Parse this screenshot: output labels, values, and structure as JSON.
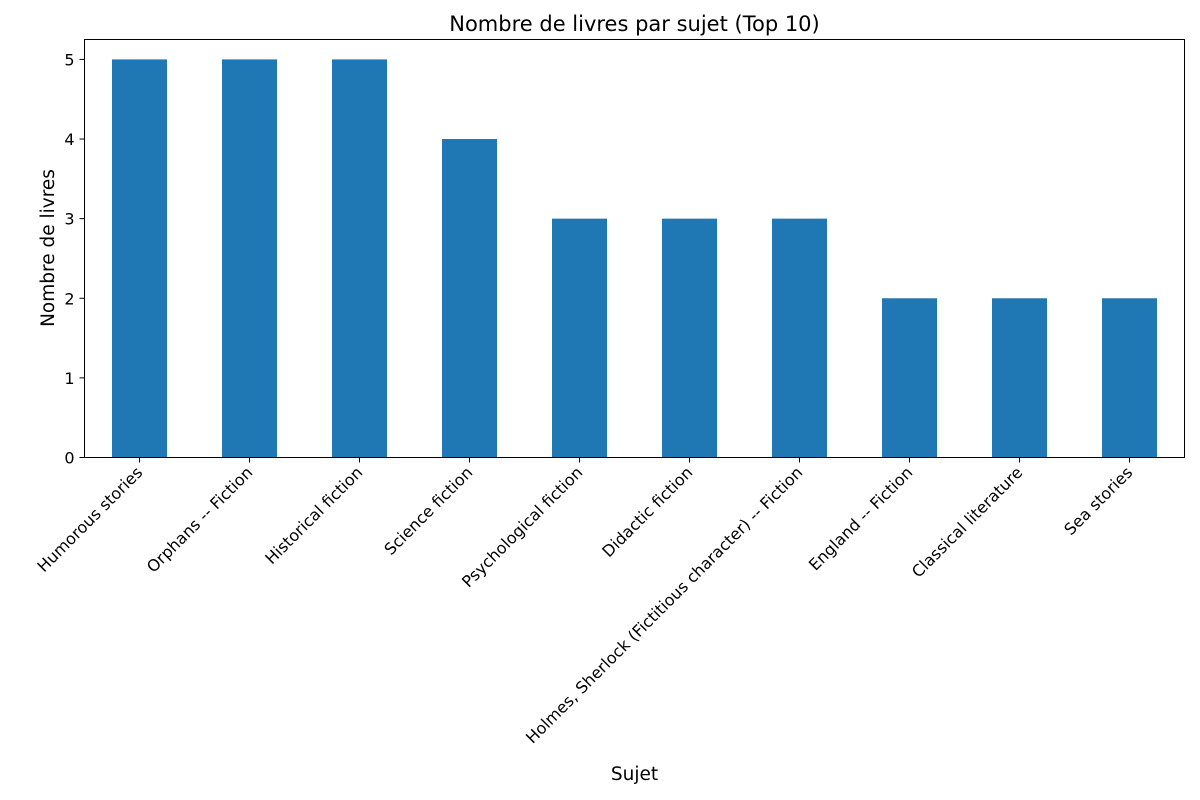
{
  "chart_data": {
    "type": "bar",
    "title": "Nombre de livres par sujet (Top 10)",
    "xlabel": "Sujet",
    "ylabel": "Nombre de livres",
    "categories": [
      "Humorous stories",
      "Orphans -- Fiction",
      "Historical fiction",
      "Science fiction",
      "Psychological fiction",
      "Didactic fiction",
      "Holmes, Sherlock (Fictitious character) -- Fiction",
      "England -- Fiction",
      "Classical literature",
      "Sea stories"
    ],
    "values": [
      5,
      5,
      5,
      4,
      3,
      3,
      3,
      2,
      2,
      2
    ],
    "ylim": [
      0,
      5.25
    ],
    "yticks": [
      0,
      1,
      2,
      3,
      4,
      5
    ],
    "grid": false,
    "legend": "none",
    "bar_color": "#1f77b4"
  }
}
